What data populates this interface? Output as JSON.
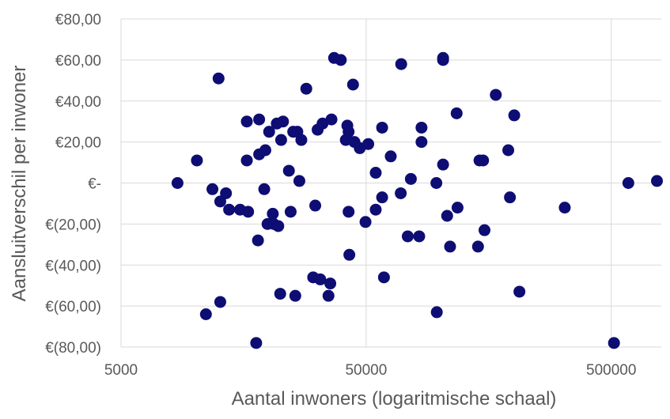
{
  "chart_data": {
    "type": "scatter",
    "title": "",
    "xlabel": "Aantal inwoners (logaritmische schaal)",
    "ylabel": "Aansluitverschil per inwoner",
    "x_scale": "log",
    "xlim": [
      5000,
      800000
    ],
    "ylim": [
      -80,
      80
    ],
    "grid": true,
    "legend": "none",
    "marker_color": "#0d0d73",
    "grid_color": "#d9d9d9",
    "axis_text_color": "#595959",
    "x_ticks": [
      {
        "value": 5000,
        "label": "5000"
      },
      {
        "value": 50000,
        "label": "50000"
      },
      {
        "value": 500000,
        "label": "500000"
      }
    ],
    "y_ticks": [
      {
        "value": 80,
        "label": "€80,00"
      },
      {
        "value": 60,
        "label": "€60,00"
      },
      {
        "value": 40,
        "label": "€40,00"
      },
      {
        "value": 20,
        "label": "€20,00"
      },
      {
        "value": 0,
        "label": "€-"
      },
      {
        "value": -20,
        "label": "€(20,00)"
      },
      {
        "value": -40,
        "label": "€(40,00)"
      },
      {
        "value": -60,
        "label": "€(60,00)"
      },
      {
        "value": -80,
        "label": "€(80,00)"
      }
    ],
    "points": [
      {
        "x": 8500,
        "y": 0
      },
      {
        "x": 10200,
        "y": 11
      },
      {
        "x": 11800,
        "y": -3
      },
      {
        "x": 12500,
        "y": 51
      },
      {
        "x": 12700,
        "y": -9
      },
      {
        "x": 12700,
        "y": -58
      },
      {
        "x": 11100,
        "y": -64
      },
      {
        "x": 13400,
        "y": -5
      },
      {
        "x": 13800,
        "y": -13
      },
      {
        "x": 15300,
        "y": -13
      },
      {
        "x": 16300,
        "y": 30
      },
      {
        "x": 16300,
        "y": 11
      },
      {
        "x": 16500,
        "y": -14
      },
      {
        "x": 18300,
        "y": 31
      },
      {
        "x": 18300,
        "y": 14
      },
      {
        "x": 17800,
        "y": -78
      },
      {
        "x": 18100,
        "y": -28
      },
      {
        "x": 19200,
        "y": -3
      },
      {
        "x": 19400,
        "y": 16
      },
      {
        "x": 19800,
        "y": -20
      },
      {
        "x": 20100,
        "y": 25
      },
      {
        "x": 20800,
        "y": -15
      },
      {
        "x": 21000,
        "y": -20
      },
      {
        "x": 21600,
        "y": 29
      },
      {
        "x": 21900,
        "y": -21
      },
      {
        "x": 22300,
        "y": -54
      },
      {
        "x": 22500,
        "y": 21
      },
      {
        "x": 22900,
        "y": 30
      },
      {
        "x": 24200,
        "y": 6
      },
      {
        "x": 24600,
        "y": -14
      },
      {
        "x": 25200,
        "y": 25
      },
      {
        "x": 25700,
        "y": -55
      },
      {
        "x": 26200,
        "y": 25
      },
      {
        "x": 26700,
        "y": 1
      },
      {
        "x": 27200,
        "y": 21
      },
      {
        "x": 28500,
        "y": 46
      },
      {
        "x": 30400,
        "y": -46
      },
      {
        "x": 31000,
        "y": -11
      },
      {
        "x": 31700,
        "y": 26
      },
      {
        "x": 32500,
        "y": -47
      },
      {
        "x": 33200,
        "y": 29
      },
      {
        "x": 35100,
        "y": -55
      },
      {
        "x": 35700,
        "y": -49
      },
      {
        "x": 36100,
        "y": 31
      },
      {
        "x": 37000,
        "y": 61
      },
      {
        "x": 39400,
        "y": 60
      },
      {
        "x": 41300,
        "y": 21
      },
      {
        "x": 41900,
        "y": 28
      },
      {
        "x": 42400,
        "y": 25
      },
      {
        "x": 42400,
        "y": -14
      },
      {
        "x": 42700,
        "y": -35
      },
      {
        "x": 44200,
        "y": 48
      },
      {
        "x": 44800,
        "y": 20
      },
      {
        "x": 47100,
        "y": 17
      },
      {
        "x": 49700,
        "y": -19
      },
      {
        "x": 51000,
        "y": 19
      },
      {
        "x": 54700,
        "y": 5
      },
      {
        "x": 54700,
        "y": -13
      },
      {
        "x": 58100,
        "y": 27
      },
      {
        "x": 58100,
        "y": -7
      },
      {
        "x": 59100,
        "y": -46
      },
      {
        "x": 63000,
        "y": 13
      },
      {
        "x": 69500,
        "y": 58
      },
      {
        "x": 69200,
        "y": -5
      },
      {
        "x": 73900,
        "y": -26
      },
      {
        "x": 76100,
        "y": 2
      },
      {
        "x": 82300,
        "y": -26
      },
      {
        "x": 84100,
        "y": 20
      },
      {
        "x": 84100,
        "y": 27
      },
      {
        "x": 96700,
        "y": 0
      },
      {
        "x": 97100,
        "y": -63
      },
      {
        "x": 103000,
        "y": 60
      },
      {
        "x": 103000,
        "y": 61
      },
      {
        "x": 103000,
        "y": 9
      },
      {
        "x": 107000,
        "y": -16
      },
      {
        "x": 110000,
        "y": -31
      },
      {
        "x": 117000,
        "y": 34
      },
      {
        "x": 118000,
        "y": -12
      },
      {
        "x": 143000,
        "y": -31
      },
      {
        "x": 145000,
        "y": 11
      },
      {
        "x": 150000,
        "y": 11
      },
      {
        "x": 152000,
        "y": -23
      },
      {
        "x": 169000,
        "y": 43
      },
      {
        "x": 190000,
        "y": 16
      },
      {
        "x": 193000,
        "y": -7
      },
      {
        "x": 201000,
        "y": 33
      },
      {
        "x": 211000,
        "y": -53
      },
      {
        "x": 323000,
        "y": -12
      },
      {
        "x": 513000,
        "y": -78
      },
      {
        "x": 587000,
        "y": 0
      },
      {
        "x": 768000,
        "y": 1
      }
    ]
  }
}
